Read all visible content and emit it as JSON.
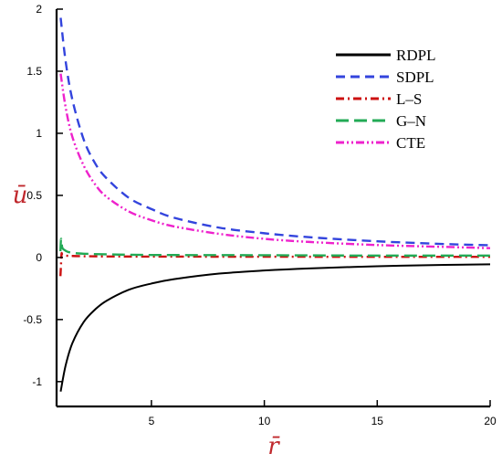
{
  "chart_data": {
    "type": "line",
    "xlabel": "r̄",
    "ylabel": "ū",
    "xlim": [
      0.8,
      20
    ],
    "ylim": [
      -1.2,
      2
    ],
    "x_ticks": [
      5,
      10,
      15,
      20
    ],
    "x_tick_labels": [
      "5",
      "10",
      "15",
      "20"
    ],
    "y_ticks": [
      -1,
      -0.5,
      0,
      0.5,
      1,
      1.5,
      2
    ],
    "y_tick_labels": [
      "-1",
      "-0.5",
      "0",
      "0.5",
      "1",
      "1.5",
      "2"
    ],
    "grid": false,
    "legend_position": "top-right",
    "series": [
      {
        "name": "RDPL",
        "color": "#000000",
        "style": "solid",
        "x": [
          0.98,
          1.2,
          1.5,
          2,
          2.5,
          3,
          4,
          5,
          6,
          8,
          10,
          12,
          15,
          18,
          20
        ],
        "y": [
          -1.08,
          -0.87,
          -0.69,
          -0.52,
          -0.42,
          -0.35,
          -0.26,
          -0.21,
          -0.175,
          -0.13,
          -0.105,
          -0.088,
          -0.071,
          -0.06,
          -0.055
        ]
      },
      {
        "name": "SDPL",
        "color": "#3344dd",
        "style": "dashed",
        "x": [
          0.98,
          1.2,
          1.5,
          2,
          2.5,
          3,
          4,
          5,
          6,
          8,
          10,
          12,
          15,
          18,
          20
        ],
        "y": [
          1.93,
          1.58,
          1.27,
          0.95,
          0.76,
          0.64,
          0.48,
          0.39,
          0.32,
          0.24,
          0.195,
          0.163,
          0.13,
          0.108,
          0.098
        ]
      },
      {
        "name": "L–S",
        "color": "#cc1111",
        "style": "dashdot",
        "x": [
          0.97,
          0.99,
          1.02,
          1.06,
          1.2,
          1.5,
          2,
          3,
          5,
          10,
          15,
          20
        ],
        "y": [
          -0.15,
          -0.08,
          0.03,
          0.02,
          0.015,
          0.012,
          0.01,
          0.008,
          0.007,
          0.006,
          0.005,
          0.005
        ]
      },
      {
        "name": "G–N",
        "color": "#22aa55",
        "style": "longdash",
        "x": [
          0.97,
          1.0,
          1.05,
          1.15,
          1.3,
          1.6,
          2,
          3,
          5,
          10,
          15,
          20
        ],
        "y": [
          0.05,
          0.15,
          0.08,
          0.06,
          0.045,
          0.035,
          0.03,
          0.025,
          0.02,
          0.018,
          0.015,
          0.015
        ]
      },
      {
        "name": "CTE",
        "color": "#ee22cc",
        "style": "dashdotdot",
        "x": [
          0.98,
          1.2,
          1.5,
          2,
          2.5,
          3,
          4,
          5,
          6,
          8,
          10,
          12,
          15,
          18,
          20
        ],
        "y": [
          1.48,
          1.21,
          0.97,
          0.74,
          0.59,
          0.49,
          0.37,
          0.3,
          0.25,
          0.19,
          0.15,
          0.125,
          0.1,
          0.085,
          0.075
        ]
      }
    ]
  }
}
